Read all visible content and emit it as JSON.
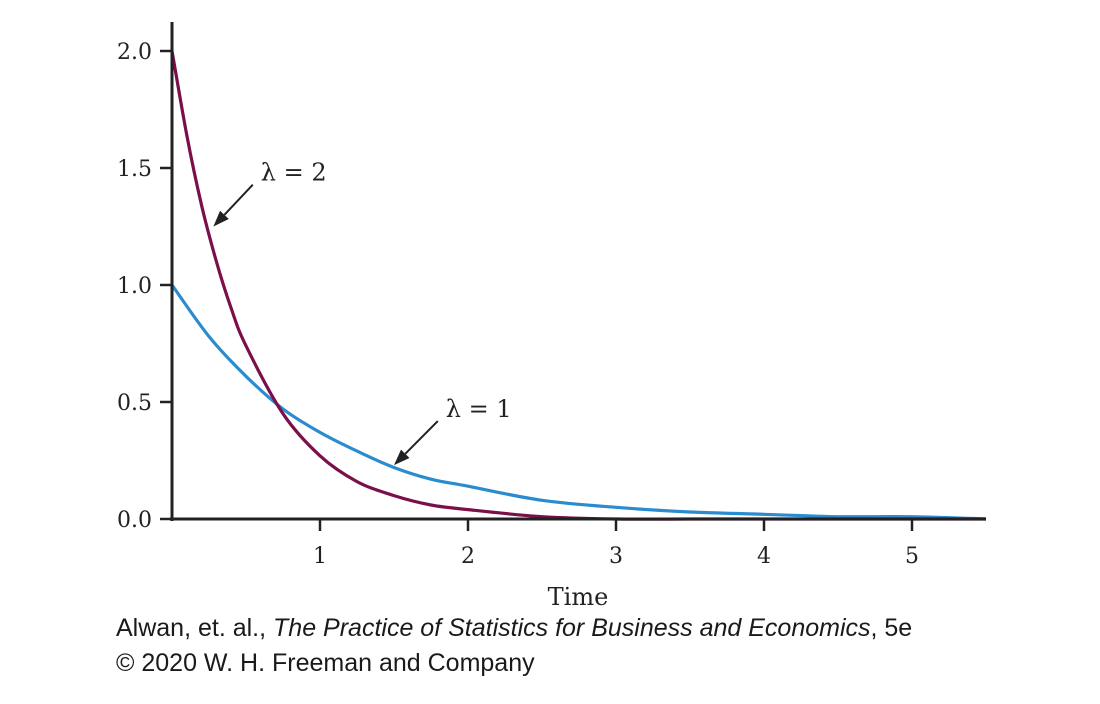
{
  "chart_data": {
    "type": "line",
    "title": "",
    "xlabel": "Time",
    "ylabel": "",
    "xlim": [
      0,
      5.5
    ],
    "ylim": [
      0,
      2.1
    ],
    "x_ticks": [
      "1",
      "2",
      "3",
      "4",
      "5"
    ],
    "x_tick_values": [
      1,
      2,
      3,
      4,
      5
    ],
    "y_ticks": [
      "0.0",
      "0.5",
      "1.0",
      "1.5",
      "2.0"
    ],
    "y_tick_values": [
      0,
      0.5,
      1.0,
      1.5,
      2.0
    ],
    "grid": false,
    "series": [
      {
        "name": "λ = 1",
        "color": "#2a8ccf",
        "x": [
          0,
          0.25,
          0.5,
          0.75,
          1.0,
          1.25,
          1.5,
          1.75,
          2.0,
          2.5,
          3.0,
          3.5,
          4.0,
          4.5,
          5.0,
          5.5
        ],
        "y": [
          1.0,
          0.78,
          0.61,
          0.47,
          0.37,
          0.29,
          0.22,
          0.17,
          0.14,
          0.08,
          0.05,
          0.03,
          0.02,
          0.01,
          0.01,
          0.0
        ]
      },
      {
        "name": "λ = 2",
        "color": "#7a0f4a",
        "x": [
          0,
          0.1,
          0.2,
          0.3,
          0.4,
          0.5,
          0.75,
          1.0,
          1.25,
          1.5,
          1.75,
          2.0,
          2.5,
          3.0,
          3.5,
          4.0,
          5.0,
          5.5
        ],
        "y": [
          2.0,
          1.64,
          1.34,
          1.1,
          0.9,
          0.74,
          0.45,
          0.27,
          0.16,
          0.1,
          0.06,
          0.04,
          0.01,
          0.0,
          0.0,
          0.0,
          0.0,
          0.0
        ]
      }
    ],
    "annotations": [
      {
        "text": "λ = 2",
        "x": 0.6,
        "y": 1.48,
        "arrow_to": [
          0.28,
          1.25
        ]
      },
      {
        "text": "λ = 1",
        "x": 1.85,
        "y": 0.47,
        "arrow_to": [
          1.5,
          0.23
        ]
      }
    ]
  },
  "credit": {
    "line1_prefix": "Alwan, et. al., ",
    "line1_title": "The Practice of Statistics for Business and Economics",
    "line1_suffix": ", 5e",
    "line2": "© 2020 W. H. Freeman and Company"
  }
}
